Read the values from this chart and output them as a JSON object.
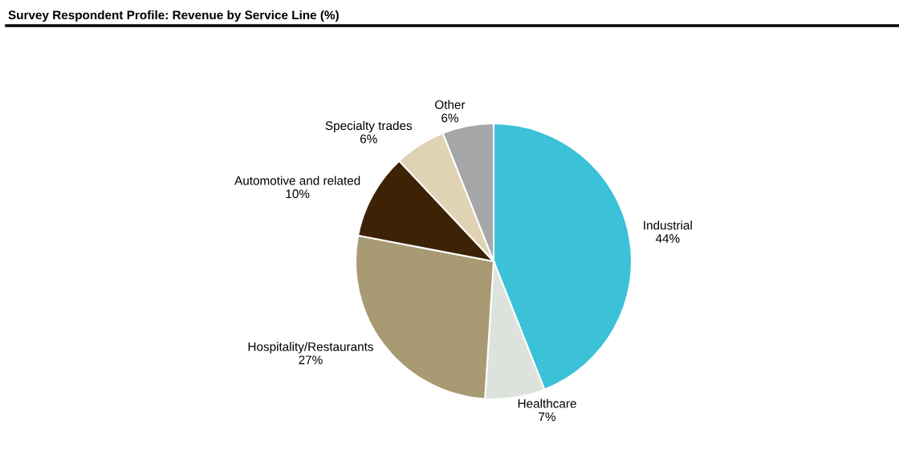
{
  "chart_data": {
    "type": "pie",
    "title": "Survey Respondent Profile: Revenue by Service Line (%)",
    "categories": [
      "Industrial",
      "Healthcare",
      "Hospitality/Restaurants",
      "Automotive and related",
      "Specialty trades",
      "Other"
    ],
    "values": [
      44,
      7,
      27,
      10,
      6,
      6
    ],
    "value_labels": [
      "44%",
      "7%",
      "27%",
      "10%",
      "6%",
      "6%"
    ],
    "colors": [
      "#3bc1d8",
      "#dde3dc",
      "#a89b74",
      "#3d2206",
      "#e0d3b4",
      "#a5a6a8"
    ],
    "legend": false
  }
}
